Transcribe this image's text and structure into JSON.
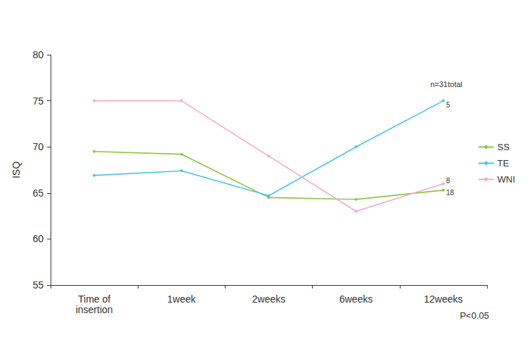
{
  "chart_data": {
    "type": "line",
    "y_label": "ISQ",
    "categories": [
      "Time of\ninsertion",
      "1week",
      "2weeks",
      "6weeks",
      "12weeks"
    ],
    "series": [
      {
        "name": "SS",
        "color": "#8cc63e",
        "values": [
          69.5,
          69.2,
          64.5,
          64.3,
          65.3
        ]
      },
      {
        "name": "TE",
        "color": "#4cc2ea",
        "values": [
          66.9,
          67.4,
          64.7,
          70,
          75
        ]
      },
      {
        "name": "WNI",
        "color": "#f5a9c8",
        "values": [
          75,
          75,
          69,
          63,
          66
        ]
      }
    ],
    "ylim": [
      55,
      80
    ],
    "yticks": [
      55,
      60,
      65,
      70,
      75,
      80
    ],
    "grid": false,
    "legend": "right",
    "marker": "diamond",
    "annotations": [
      {
        "text": "n=31total"
      },
      {
        "text": "5",
        "series": "TE",
        "category": "12weeks"
      },
      {
        "text": "8",
        "series": "WNI",
        "category": "12weeks"
      },
      {
        "text": "18",
        "series": "SS",
        "category": "12weeks"
      },
      {
        "text": "P<0.05"
      }
    ]
  }
}
